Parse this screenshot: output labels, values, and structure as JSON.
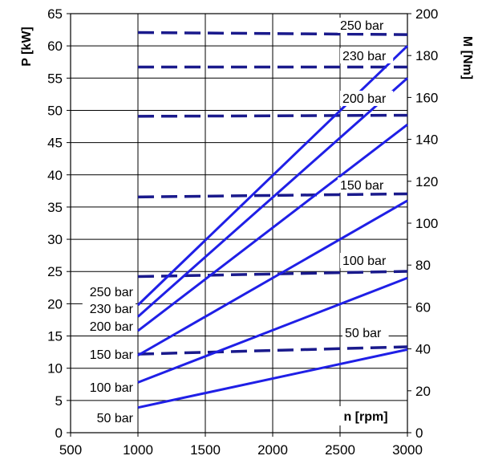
{
  "chart_data": {
    "type": "line",
    "xlabel": "n [rpm]",
    "ylabel_left": "P [kW]",
    "ylabel_right": "M [Nm]",
    "x_ticks": [
      "500",
      "1000",
      "1500",
      "2000",
      "2500",
      "3000"
    ],
    "y_left_ticks": [
      "0",
      "5",
      "10",
      "15",
      "20",
      "25",
      "30",
      "35",
      "40",
      "45",
      "50",
      "55",
      "60",
      "65"
    ],
    "y_right_ticks": [
      "0",
      "20",
      "40",
      "60",
      "80",
      "100",
      "120",
      "140",
      "160",
      "180",
      "200"
    ],
    "xlim": [
      500,
      3000
    ],
    "ylim_left": [
      0,
      65
    ],
    "ylim_right": [
      0,
      200
    ],
    "grid": true,
    "power_series": [
      {
        "name": "250 bar",
        "axis": "left",
        "style": "solid",
        "x": [
          1000,
          3000
        ],
        "y": [
          19.8,
          60.0
        ]
      },
      {
        "name": "230 bar",
        "axis": "left",
        "style": "solid",
        "x": [
          1000,
          3000
        ],
        "y": [
          18.0,
          55.0
        ]
      },
      {
        "name": "200 bar",
        "axis": "left",
        "style": "solid",
        "x": [
          1000,
          3000
        ],
        "y": [
          15.8,
          47.8
        ]
      },
      {
        "name": "150 bar",
        "axis": "left",
        "style": "solid",
        "x": [
          1000,
          3000
        ],
        "y": [
          12.0,
          36.0
        ]
      },
      {
        "name": "100 bar",
        "axis": "left",
        "style": "solid",
        "x": [
          1000,
          3000
        ],
        "y": [
          7.8,
          24.0
        ]
      },
      {
        "name": "50 bar",
        "axis": "left",
        "style": "solid",
        "x": [
          1000,
          3000
        ],
        "y": [
          3.9,
          12.9
        ]
      }
    ],
    "torque_series": [
      {
        "name": "250 bar",
        "axis": "right",
        "style": "dashed",
        "x": [
          1000,
          3000
        ],
        "y": [
          191,
          190
        ]
      },
      {
        "name": "230 bar",
        "axis": "right",
        "style": "dashed",
        "x": [
          1000,
          3000
        ],
        "y": [
          174.5,
          174.5
        ]
      },
      {
        "name": "200 bar",
        "axis": "right",
        "style": "dashed",
        "x": [
          1000,
          3000
        ],
        "y": [
          151,
          151.5
        ]
      },
      {
        "name": "150 bar",
        "axis": "right",
        "style": "dashed",
        "x": [
          1000,
          3000
        ],
        "y": [
          112.5,
          114
        ]
      },
      {
        "name": "100 bar",
        "axis": "right",
        "style": "dashed",
        "x": [
          1000,
          3000
        ],
        "y": [
          74.5,
          77
        ]
      },
      {
        "name": "50 bar",
        "axis": "right",
        "style": "dashed",
        "x": [
          1000,
          3000
        ],
        "y": [
          37.5,
          41
        ]
      }
    ],
    "colors": {
      "power": "#1f1fe6",
      "torque": "#1a1a8c",
      "grid": "#000000"
    }
  }
}
